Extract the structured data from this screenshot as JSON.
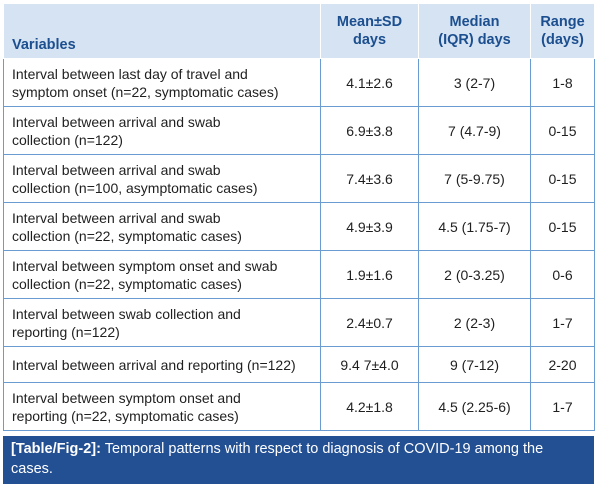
{
  "table": {
    "headers": {
      "variables": "Variables",
      "mean_sd": [
        "Mean±SD",
        "days"
      ],
      "median_iqr": [
        "Median",
        "(IQR) days"
      ],
      "range": [
        "Range",
        "(days)"
      ]
    },
    "rows": [
      {
        "variable": [
          "Interval between last day of travel and",
          "symptom onset (n=22, symptomatic cases)"
        ],
        "mean_sd": "4.1±2.6",
        "median": "3 (2-7)",
        "range": "1-8"
      },
      {
        "variable": [
          "Interval between arrival and swab",
          "collection (n=122)"
        ],
        "mean_sd": "6.9±3.8",
        "median": "7 (4.7-9)",
        "range": "0-15"
      },
      {
        "variable": [
          "Interval between arrival and swab",
          "collection (n=100, asymptomatic cases)"
        ],
        "mean_sd": "7.4±3.6",
        "median": "7 (5-9.75)",
        "range": "0-15"
      },
      {
        "variable": [
          "Interval between arrival and swab",
          "collection (n=22, symptomatic cases)"
        ],
        "mean_sd": "4.9±3.9",
        "median": "4.5 (1.75-7)",
        "range": "0-15"
      },
      {
        "variable": [
          "Interval between symptom onset and swab",
          "collection (n=22, symptomatic cases)"
        ],
        "mean_sd": "1.9±1.6",
        "median": "2 (0-3.25)",
        "range": "0-6"
      },
      {
        "variable": [
          "Interval between swab collection and",
          "reporting (n=122)"
        ],
        "mean_sd": "2.4±0.7",
        "median": "2 (2-3)",
        "range": "1-7"
      },
      {
        "variable": [
          "Interval between arrival and reporting (n=122)"
        ],
        "mean_sd": "9.4 7±4.0",
        "median": "9 (7-12)",
        "range": "2-20"
      },
      {
        "variable": [
          "Interval between symptom onset and",
          "reporting (n=22, symptomatic cases)"
        ],
        "mean_sd": "4.2±1.8",
        "median": "4.5 (2.25-6)",
        "range": "1-7"
      }
    ]
  },
  "caption": {
    "label": "[Table/Fig-2]:",
    "text": " Temporal patterns with respect to diagnosis of COVID-19 among the cases."
  }
}
